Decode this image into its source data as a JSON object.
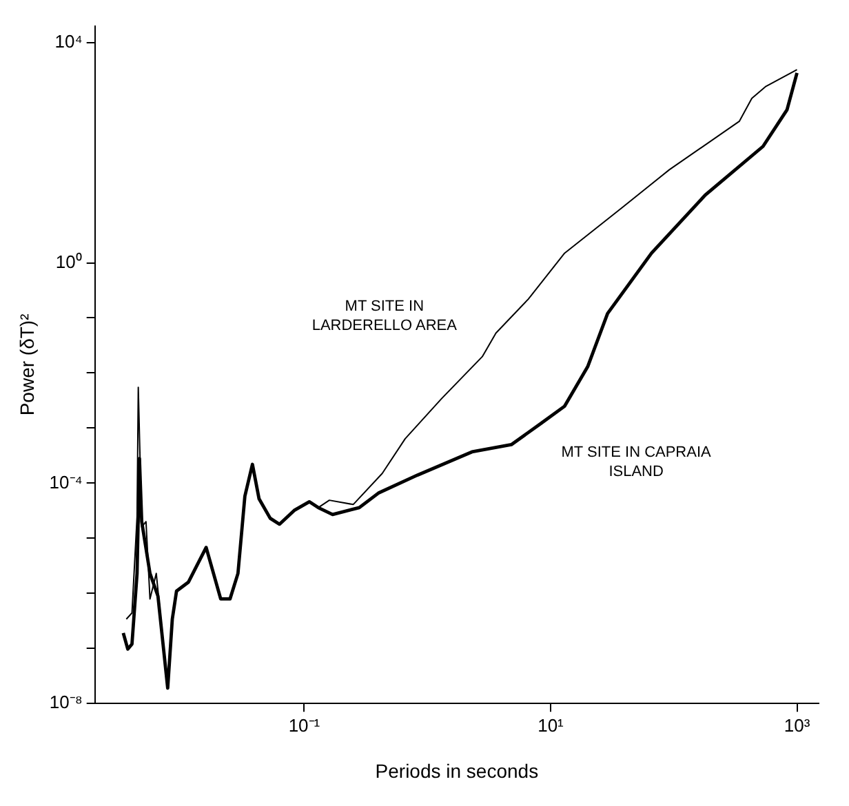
{
  "chart_data": {
    "type": "line",
    "xlabel": "Periods in seconds",
    "ylabel": "Power (δT)²",
    "log": "xy",
    "grid": false,
    "legend": false,
    "marker": "none",
    "line_style": "solid",
    "xlim": [
      0.002,
      1500
    ],
    "xticks": [
      {
        "value": 0.1,
        "label": "10⁻¹"
      },
      {
        "value": 10,
        "label": "10¹"
      },
      {
        "value": 1000,
        "label": "10³"
      }
    ],
    "ylim": [
      1e-08,
      20000
    ],
    "yticks": [
      {
        "value": 1e-08,
        "label": "10⁻⁸"
      },
      {
        "value": 1e-07,
        "label": null
      },
      {
        "value": 1e-06,
        "label": null
      },
      {
        "value": 1e-05,
        "label": null
      },
      {
        "value": 0.0001,
        "label": "10⁻⁴"
      },
      {
        "value": 0.001,
        "label": null
      },
      {
        "value": 0.01,
        "label": null
      },
      {
        "value": 0.1,
        "label": null
      },
      {
        "value": 1,
        "label": "10⁰"
      },
      {
        "value": 10000,
        "label": "10⁴"
      }
    ],
    "series": [
      {
        "name": "MT SITE IN LARDERELLO AREA",
        "color": "#000000",
        "x": [
          0.0036,
          0.004,
          0.0044,
          0.0045,
          0.0048,
          0.0052,
          0.0056,
          0.0063,
          0.0078,
          0.0085,
          0.0092,
          0.0115,
          0.016,
          0.021,
          0.025,
          0.029,
          0.033,
          0.038,
          0.043,
          0.053,
          0.063,
          0.083,
          0.11,
          0.13,
          0.16,
          0.25,
          0.43,
          0.66,
          1.3,
          2.8,
          3.6,
          6.6,
          13,
          38,
          92,
          340,
          430,
          560,
          1000
        ],
        "values": [
          3.4e-07,
          4.4e-07,
          2.5e-05,
          0.0055,
          1.6e-05,
          2e-05,
          7.9e-07,
          2.3e-06,
          1.9e-08,
          3.4e-07,
          1.1e-06,
          1.6e-06,
          6.8e-06,
          7.9e-07,
          7.9e-07,
          2.3e-06,
          5.8e-05,
          0.00022,
          5.2e-05,
          2.3e-05,
          1.8e-05,
          3.2e-05,
          4.6e-05,
          3.6e-05,
          4.9e-05,
          4.1e-05,
          0.00015,
          0.00064,
          0.0034,
          0.02,
          0.053,
          0.22,
          1.5,
          10,
          49,
          370,
          970,
          1600,
          3200
        ]
      },
      {
        "name": "MT SITE IN CAPRAIA ISLAND",
        "color": "#000000",
        "x": [
          0.0034,
          0.0037,
          0.004,
          0.0044,
          0.0046,
          0.0048,
          0.0056,
          0.0065,
          0.0078,
          0.0085,
          0.0092,
          0.0115,
          0.016,
          0.021,
          0.025,
          0.029,
          0.033,
          0.038,
          0.043,
          0.053,
          0.063,
          0.083,
          0.11,
          0.13,
          0.17,
          0.28,
          0.4,
          0.83,
          2.3,
          4.8,
          8.3,
          13,
          20,
          29,
          66,
          180,
          530,
          830,
          1000
        ],
        "values": [
          1.9e-07,
          9.7e-08,
          1.2e-07,
          2.3e-06,
          0.00028,
          2e-05,
          2.3e-06,
          8.9e-07,
          1.9e-08,
          3.4e-07,
          1.1e-06,
          1.6e-06,
          6.8e-06,
          7.9e-07,
          7.9e-07,
          2.3e-06,
          5.8e-05,
          0.00022,
          5.2e-05,
          2.3e-05,
          1.8e-05,
          3.2e-05,
          4.6e-05,
          3.6e-05,
          2.7e-05,
          3.6e-05,
          6.6e-05,
          0.00014,
          0.00037,
          0.0005,
          0.0012,
          0.0025,
          0.013,
          0.12,
          1.5,
          17,
          130,
          600,
          2800
        ]
      }
    ]
  }
}
